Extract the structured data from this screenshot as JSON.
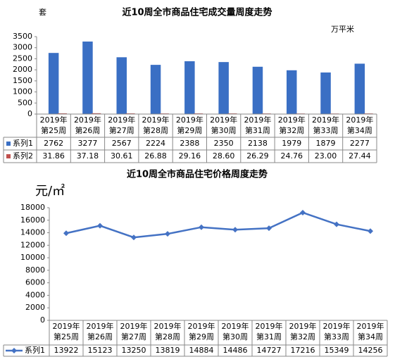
{
  "chart_data": [
    {
      "type": "bar",
      "title": "近10周全市商品住宅成交量周度走势",
      "y_label": "套",
      "y2_label": "万平米",
      "categories": [
        [
          "2019年",
          "第25周"
        ],
        [
          "2019年",
          "第26周"
        ],
        [
          "2019年",
          "第27周"
        ],
        [
          "2019年",
          "第28周"
        ],
        [
          "2019年",
          "第29周"
        ],
        [
          "2019年",
          "第30周"
        ],
        [
          "2019年",
          "第31周"
        ],
        [
          "2019年",
          "第32周"
        ],
        [
          "2019年",
          "第33周"
        ],
        [
          "2019年",
          "第34周"
        ]
      ],
      "series": [
        {
          "name": "系列1",
          "color": "#3a6fc4",
          "values": [
            2762,
            3277,
            2567,
            2224,
            2388,
            2350,
            2138,
            1979,
            1879,
            2277
          ]
        },
        {
          "name": "系列2",
          "color": "#c0504d",
          "values": [
            31.86,
            37.18,
            30.61,
            26.88,
            29.16,
            28.6,
            26.29,
            24.76,
            23,
            27.44
          ],
          "value_labels": [
            "31.86",
            "37.18",
            "30.61",
            "26.88",
            "29.16",
            "28.60",
            "26.29",
            "24.76",
            "23.00",
            "27.44"
          ]
        }
      ],
      "ylim": [
        0,
        3500
      ],
      "yticks": [
        0,
        500,
        1000,
        1500,
        2000,
        2500,
        3000,
        3500
      ]
    },
    {
      "type": "line",
      "title": "近10周全市商品住宅价格周度走势",
      "y_label": "元/㎡",
      "categories": [
        [
          "2019年",
          "第25周"
        ],
        [
          "2019年",
          "第26周"
        ],
        [
          "2019年",
          "第27周"
        ],
        [
          "2019年",
          "第28周"
        ],
        [
          "2019年",
          "第29周"
        ],
        [
          "2019年",
          "第30周"
        ],
        [
          "2019年",
          "第31周"
        ],
        [
          "2019年",
          "第32周"
        ],
        [
          "2019年",
          "第33周"
        ],
        [
          "2019年",
          "第34周"
        ]
      ],
      "series": [
        {
          "name": "系列1",
          "color": "#4472c4",
          "values": [
            13922,
            15123,
            13250,
            13819,
            14884,
            14486,
            14727,
            17216,
            15349,
            14256
          ]
        }
      ],
      "ylim": [
        0,
        18000
      ],
      "yticks": [
        0,
        2000,
        4000,
        6000,
        8000,
        10000,
        12000,
        14000,
        16000,
        18000
      ]
    }
  ]
}
